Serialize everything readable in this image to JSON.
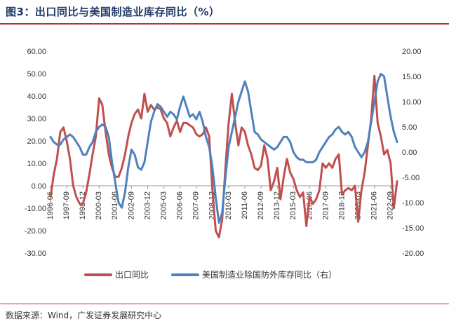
{
  "header": {
    "title": "图3：出口同比与美国制造业库存同比（%）"
  },
  "footer": {
    "source": "数据来源：Wind，广发证券发展研究中心"
  },
  "colors": {
    "export": "#c0504d",
    "inventory": "#4f81bd",
    "accent_rule": "#b5332e",
    "title": "#1f3a66"
  },
  "chart_data": {
    "type": "line",
    "title": "",
    "legend_position": "bottom",
    "grid": false,
    "x_start": "1996-06",
    "x_end": "2023-03",
    "x_tick_labels": [
      "1996-06",
      "1997-09",
      "1998-12",
      "2000-03",
      "2001-06",
      "2002-09",
      "2003-12",
      "2005-03",
      "2006-06",
      "2007-09",
      "2008-12",
      "2010-03",
      "2011-06",
      "2012-09",
      "2013-12",
      "2015-03",
      "2016-06",
      "2017-09",
      "2018-12",
      "2020-03",
      "2021-06",
      "2022-09"
    ],
    "y_left": {
      "min": -30,
      "max": 60,
      "step": 10,
      "tick_labels": [
        "-30.00",
        "-20.00",
        "-10.00",
        "0.00",
        "10.00",
        "20.00",
        "30.00",
        "40.00",
        "50.00",
        "60.00"
      ]
    },
    "y_right": {
      "min": -20,
      "max": 20,
      "step": 5,
      "tick_labels": [
        "-20.00",
        "-15.00",
        "-10.00",
        "-5.00",
        "0.00",
        "5.00",
        "10.00",
        "15.00",
        "20.00"
      ]
    },
    "series": [
      {
        "name": "出口同比",
        "axis": "left",
        "color": "#c0504d",
        "points": [
          [
            "1996-06",
            -5
          ],
          [
            "1996-09",
            5
          ],
          [
            "1996-12",
            12
          ],
          [
            "1997-03",
            24
          ],
          [
            "1997-06",
            26
          ],
          [
            "1997-09",
            20
          ],
          [
            "1997-12",
            12
          ],
          [
            "1998-03",
            0
          ],
          [
            "1998-06",
            -5
          ],
          [
            "1998-09",
            -8
          ],
          [
            "1998-12",
            -8
          ],
          [
            "1999-03",
            -3
          ],
          [
            "1999-06",
            5
          ],
          [
            "1999-09",
            14
          ],
          [
            "1999-12",
            22
          ],
          [
            "2000-03",
            39
          ],
          [
            "2000-06",
            36
          ],
          [
            "2000-09",
            24
          ],
          [
            "2000-12",
            14
          ],
          [
            "2001-03",
            8
          ],
          [
            "2001-06",
            4
          ],
          [
            "2001-09",
            4
          ],
          [
            "2001-12",
            8
          ],
          [
            "2002-03",
            14
          ],
          [
            "2002-06",
            22
          ],
          [
            "2002-09",
            28
          ],
          [
            "2002-12",
            32
          ],
          [
            "2003-03",
            34
          ],
          [
            "2003-06",
            30
          ],
          [
            "2003-09",
            41
          ],
          [
            "2003-12",
            33
          ],
          [
            "2004-03",
            36
          ],
          [
            "2004-06",
            34
          ],
          [
            "2004-09",
            35
          ],
          [
            "2004-12",
            34
          ],
          [
            "2005-03",
            30
          ],
          [
            "2005-06",
            28
          ],
          [
            "2005-09",
            22
          ],
          [
            "2005-12",
            26
          ],
          [
            "2006-03",
            29
          ],
          [
            "2006-06",
            24
          ],
          [
            "2006-09",
            28
          ],
          [
            "2006-12",
            28
          ],
          [
            "2007-03",
            27
          ],
          [
            "2007-06",
            26
          ],
          [
            "2007-09",
            23
          ],
          [
            "2007-12",
            22
          ],
          [
            "2008-03",
            23
          ],
          [
            "2008-06",
            26
          ],
          [
            "2008-09",
            22
          ],
          [
            "2008-12",
            -2
          ],
          [
            "2009-03",
            -20
          ],
          [
            "2009-06",
            -23
          ],
          [
            "2009-09",
            -15
          ],
          [
            "2009-12",
            8
          ],
          [
            "2010-03",
            28
          ],
          [
            "2010-06",
            41
          ],
          [
            "2010-09",
            28
          ],
          [
            "2010-12",
            18
          ],
          [
            "2011-03",
            26
          ],
          [
            "2011-06",
            24
          ],
          [
            "2011-09",
            18
          ],
          [
            "2011-12",
            14
          ],
          [
            "2012-03",
            8
          ],
          [
            "2012-06",
            7
          ],
          [
            "2012-09",
            9
          ],
          [
            "2012-12",
            18
          ],
          [
            "2013-03",
            12
          ],
          [
            "2013-06",
            -2
          ],
          [
            "2013-09",
            2
          ],
          [
            "2013-12",
            8
          ],
          [
            "2014-03",
            -6
          ],
          [
            "2014-06",
            4
          ],
          [
            "2014-09",
            12
          ],
          [
            "2014-12",
            6
          ],
          [
            "2015-03",
            3
          ],
          [
            "2015-06",
            -2
          ],
          [
            "2015-09",
            -5
          ],
          [
            "2015-12",
            -3
          ],
          [
            "2016-03",
            -18
          ],
          [
            "2016-06",
            -5
          ],
          [
            "2016-09",
            -8
          ],
          [
            "2016-12",
            -6
          ],
          [
            "2017-03",
            -2
          ],
          [
            "2017-06",
            10
          ],
          [
            "2017-09",
            8
          ],
          [
            "2017-12",
            10
          ],
          [
            "2018-03",
            8
          ],
          [
            "2018-06",
            12
          ],
          [
            "2018-09",
            14
          ],
          [
            "2018-12",
            -4
          ],
          [
            "2019-03",
            -2
          ],
          [
            "2019-06",
            -1
          ],
          [
            "2019-09",
            -2
          ],
          [
            "2019-12",
            0
          ],
          [
            "2020-03",
            -16
          ],
          [
            "2020-06",
            -2
          ],
          [
            "2020-09",
            6
          ],
          [
            "2020-12",
            18
          ],
          [
            "2021-03",
            30
          ],
          [
            "2021-06",
            49
          ],
          [
            "2021-09",
            28
          ],
          [
            "2021-12",
            22
          ],
          [
            "2022-03",
            14
          ],
          [
            "2022-06",
            16
          ],
          [
            "2022-09",
            10
          ],
          [
            "2022-12",
            -10
          ],
          [
            "2023-03",
            2
          ]
        ]
      },
      {
        "name": "美国制造业除国防外库存同比（右）",
        "axis": "right",
        "color": "#4f81bd",
        "points": [
          [
            "1996-06",
            3
          ],
          [
            "1996-09",
            2
          ],
          [
            "1996-12",
            1.5
          ],
          [
            "1997-03",
            1.5
          ],
          [
            "1997-06",
            2.5
          ],
          [
            "1997-09",
            3
          ],
          [
            "1997-12",
            3.5
          ],
          [
            "1998-03",
            3
          ],
          [
            "1998-06",
            2
          ],
          [
            "1998-09",
            1
          ],
          [
            "1998-12",
            -0.5
          ],
          [
            "1999-03",
            -0.5
          ],
          [
            "1999-06",
            1
          ],
          [
            "1999-09",
            2
          ],
          [
            "1999-12",
            4
          ],
          [
            "2000-03",
            5
          ],
          [
            "2000-06",
            5.5
          ],
          [
            "2000-09",
            5
          ],
          [
            "2000-12",
            3
          ],
          [
            "2001-03",
            -2
          ],
          [
            "2001-06",
            -6
          ],
          [
            "2001-09",
            -10
          ],
          [
            "2001-12",
            -11
          ],
          [
            "2002-03",
            -8
          ],
          [
            "2002-06",
            -3
          ],
          [
            "2002-09",
            0.5
          ],
          [
            "2002-12",
            -0.5
          ],
          [
            "2003-03",
            -3
          ],
          [
            "2003-06",
            -3.5
          ],
          [
            "2003-09",
            -2
          ],
          [
            "2003-12",
            2
          ],
          [
            "2004-03",
            6
          ],
          [
            "2004-06",
            8
          ],
          [
            "2004-09",
            9.5
          ],
          [
            "2004-12",
            9
          ],
          [
            "2005-03",
            8
          ],
          [
            "2005-06",
            7
          ],
          [
            "2005-09",
            8
          ],
          [
            "2005-12",
            7.5
          ],
          [
            "2006-03",
            6.5
          ],
          [
            "2006-06",
            9
          ],
          [
            "2006-09",
            11
          ],
          [
            "2006-12",
            9
          ],
          [
            "2007-03",
            7
          ],
          [
            "2007-06",
            7.5
          ],
          [
            "2007-09",
            6.5
          ],
          [
            "2007-12",
            8
          ],
          [
            "2008-03",
            6
          ],
          [
            "2008-06",
            3
          ],
          [
            "2008-09",
            1
          ],
          [
            "2008-12",
            -3
          ],
          [
            "2009-03",
            -9
          ],
          [
            "2009-06",
            -14
          ],
          [
            "2009-09",
            -12
          ],
          [
            "2009-12",
            -5
          ],
          [
            "2010-03",
            1
          ],
          [
            "2010-06",
            4
          ],
          [
            "2010-09",
            7
          ],
          [
            "2010-12",
            10
          ],
          [
            "2011-03",
            12
          ],
          [
            "2011-06",
            14
          ],
          [
            "2011-09",
            12
          ],
          [
            "2011-12",
            8
          ],
          [
            "2012-03",
            4
          ],
          [
            "2012-06",
            3.5
          ],
          [
            "2012-09",
            2.5
          ],
          [
            "2012-12",
            2
          ],
          [
            "2013-03",
            1.5
          ],
          [
            "2013-06",
            1
          ],
          [
            "2013-09",
            0.5
          ],
          [
            "2013-12",
            1
          ],
          [
            "2014-03",
            2
          ],
          [
            "2014-06",
            3
          ],
          [
            "2014-09",
            3
          ],
          [
            "2014-12",
            2
          ],
          [
            "2015-03",
            0
          ],
          [
            "2015-06",
            -1
          ],
          [
            "2015-09",
            -1.5
          ],
          [
            "2015-12",
            -1.5
          ],
          [
            "2016-03",
            -2
          ],
          [
            "2016-06",
            -2
          ],
          [
            "2016-09",
            -2
          ],
          [
            "2016-12",
            -1.5
          ],
          [
            "2017-03",
            0
          ],
          [
            "2017-06",
            1
          ],
          [
            "2017-09",
            2
          ],
          [
            "2017-12",
            3
          ],
          [
            "2018-03",
            3.5
          ],
          [
            "2018-06",
            4.5
          ],
          [
            "2018-09",
            5
          ],
          [
            "2018-12",
            4
          ],
          [
            "2019-03",
            3.5
          ],
          [
            "2019-06",
            4
          ],
          [
            "2019-09",
            3
          ],
          [
            "2019-12",
            1
          ],
          [
            "2020-03",
            0
          ],
          [
            "2020-06",
            -1
          ],
          [
            "2020-09",
            0
          ],
          [
            "2020-12",
            2
          ],
          [
            "2021-03",
            6
          ],
          [
            "2021-06",
            10
          ],
          [
            "2021-09",
            14
          ],
          [
            "2021-12",
            15.5
          ],
          [
            "2022-03",
            15
          ],
          [
            "2022-06",
            11
          ],
          [
            "2022-09",
            7
          ],
          [
            "2022-12",
            4
          ],
          [
            "2023-03",
            2
          ]
        ]
      }
    ]
  }
}
